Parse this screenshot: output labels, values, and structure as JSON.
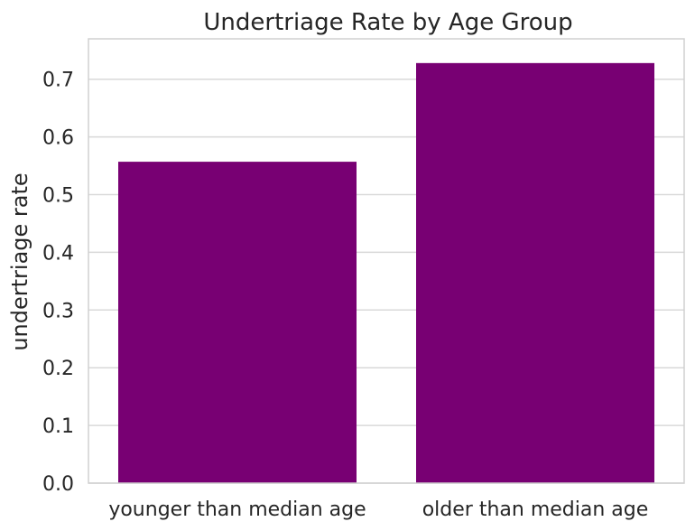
{
  "chart_data": {
    "type": "bar",
    "title": "Undertriage Rate by Age Group",
    "xlabel": "",
    "ylabel": "undertriage rate",
    "categories": [
      "younger than median age",
      "older than median age"
    ],
    "values": [
      0.557,
      0.728
    ],
    "ylim": [
      0,
      0.77
    ],
    "yticks": [
      0.0,
      0.1,
      0.2,
      0.3,
      0.4,
      0.5,
      0.6,
      0.7
    ],
    "ytick_labels": [
      "0.0",
      "0.1",
      "0.2",
      "0.3",
      "0.4",
      "0.5",
      "0.6",
      "0.7"
    ],
    "bar_color": "#780073",
    "grid": true,
    "grid_axis": "y"
  }
}
